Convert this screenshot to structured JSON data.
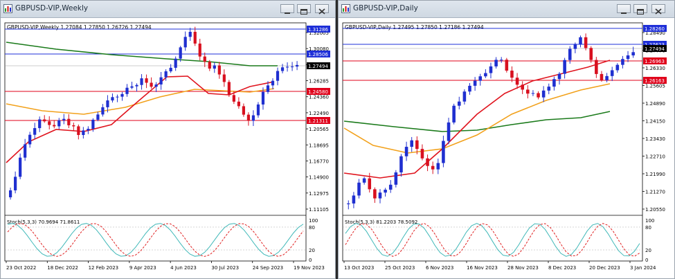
{
  "windows": [
    {
      "title": "GBPUSD-VIP,Weekly",
      "controls": [
        "minimize",
        "restore",
        "close"
      ],
      "info_line": "GBPUSD-VIP,Weekly  1.27084 1.27850 1.26726 1.27494",
      "price_scale": [
        "1.32005",
        "1.30080",
        "1.28210",
        "1.26285",
        "1.24360",
        "1.22490",
        "1.20565",
        "1.18695",
        "1.16770",
        "1.14900",
        "1.12975",
        "1.11105"
      ],
      "price_tags": [
        {
          "text": "1.31286",
          "color": "#1e2fd8"
        },
        {
          "text": "1.28506",
          "color": "#1e2fd8"
        },
        {
          "text": "1.27494",
          "color": "#000000"
        },
        {
          "text": "1.24580",
          "color": "#e0001a"
        },
        {
          "text": "1.21311",
          "color": "#e0001a"
        }
      ],
      "oscillator_label": "Stoch(5,3,3) 70.9694 71.8611",
      "osc_scale": [
        "100",
        "80",
        "20",
        "0"
      ],
      "time_labels": [
        "23 Oct 2022",
        "18 Dec 2022",
        "12 Feb 2023",
        "9 Apr 2023",
        "4 Jun 2023",
        "30 Jul 2023",
        "24 Sep 2023",
        "19 Nov 2023"
      ]
    },
    {
      "title": "GBPUSD-VIP,Daily",
      "controls": [
        "minimize",
        "restore",
        "close"
      ],
      "info_line": "GBPUSD-VIP,Daily  1.27495 1.27850 1.27186 1.27494",
      "price_scale": [
        "1.28490",
        "1.27770",
        "1.26330",
        "1.25605",
        "1.24890",
        "1.24150",
        "1.23430",
        "1.22710",
        "1.21990",
        "1.21270",
        "1.20550"
      ],
      "price_tags": [
        {
          "text": "1.28260",
          "color": "#1e2fd8"
        },
        {
          "text": "1.27623",
          "color": "#1e2fd8"
        },
        {
          "text": "1.27494",
          "color": "#000000"
        },
        {
          "text": "1.26963",
          "color": "#e0001a"
        },
        {
          "text": "1.26163",
          "color": "#e0001a"
        }
      ],
      "oscillator_label": "Stoch(5,3,3) 81.2203 78.5092",
      "osc_scale": [
        "100",
        "80",
        "20",
        "0"
      ],
      "time_labels": [
        "13 Oct 2023",
        "25 Oct 2023",
        "6 Nov 2023",
        "16 Nov 2023",
        "28 Nov 2023",
        "8 Dec 2023",
        "20 Dec 2023",
        "3 Jan 2024"
      ]
    }
  ],
  "colors": {
    "bull_candle": "#1f2fd0",
    "bear_candle": "#d8101f",
    "ma_fast": "#e0141e",
    "ma_mid": "#f2a11b",
    "ma_slow": "#1a7a1a",
    "stoch_main": "#3fb8b8",
    "stoch_signal": "#e02020",
    "resistance_line": "#1e2fd8",
    "support_line": "#e0001a"
  }
}
